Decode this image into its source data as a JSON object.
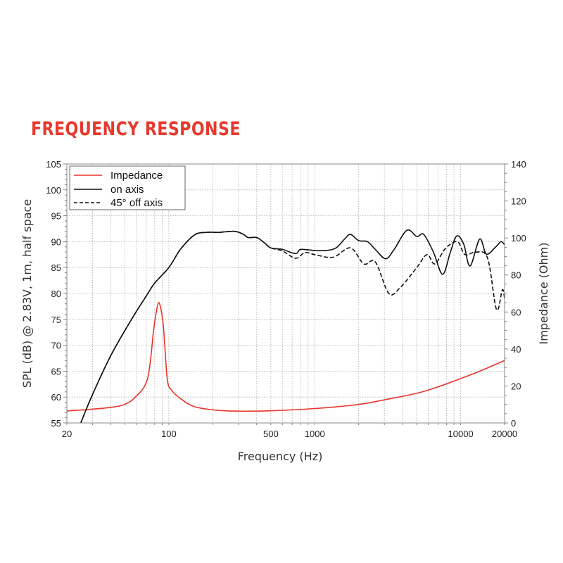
{
  "title": "FREQUENCY RESPONSE",
  "chart_data": {
    "type": "line",
    "xlabel": "Frequency (Hz)",
    "ylabel": "SPL (dB) @ 2.83V, 1m, half space",
    "y2label": "Impedance (Ohm)",
    "xscale": "log",
    "xlim": [
      20,
      20000
    ],
    "ylim": [
      55,
      105
    ],
    "y2lim": [
      0,
      140
    ],
    "grid": true,
    "legend_position": "top-left",
    "x_tick_labels": [
      "20",
      "100",
      "500",
      "1000",
      "10000",
      "20000"
    ],
    "x_ticks": [
      20,
      100,
      500,
      1000,
      10000,
      20000
    ],
    "y_ticks": [
      55,
      60,
      65,
      70,
      75,
      80,
      85,
      90,
      95,
      100,
      105
    ],
    "y2_ticks": [
      0,
      20,
      40,
      60,
      80,
      100,
      120,
      140
    ],
    "series": [
      {
        "name": "Impedance",
        "axis": "right",
        "color": "#e8352a",
        "style": "solid",
        "x": [
          20,
          27.3,
          39.8,
          49.6,
          59,
          71.5,
          78.6,
          82,
          85,
          88,
          91.8,
          97.5,
          103.8,
          121,
          151,
          218,
          300,
          500,
          1000,
          2000,
          3000,
          5000,
          7000,
          10000,
          14000,
          20000
        ],
        "y": [
          6.5,
          7.2,
          8.4,
          10,
          14,
          24,
          50,
          60,
          65,
          62,
          52,
          24,
          18,
          13,
          8.7,
          6.8,
          6.4,
          6.6,
          7.8,
          10,
          12.5,
          16,
          19.5,
          24,
          28.5,
          33.8
        ]
      },
      {
        "name": "on axis",
        "axis": "left",
        "color": "#111111",
        "style": "solid",
        "x": [
          24.9,
          30,
          40,
          55.5,
          70,
          80,
          100,
          120,
          150,
          180,
          220,
          280,
          320,
          350,
          400,
          450,
          500,
          600,
          740,
          800,
          1000,
          1200,
          1400,
          1600,
          1758,
          2000,
          2300,
          2600,
          3062,
          3500,
          4280,
          5000,
          5580,
          6500,
          7530,
          8500,
          9400,
          10500,
          11600,
          13500,
          15000,
          17400,
          18900,
          20000
        ],
        "y": [
          55,
          60.5,
          68,
          75,
          79.5,
          82,
          85,
          88.5,
          91.3,
          91.8,
          91.8,
          92,
          91.5,
          90.8,
          90.8,
          89.8,
          88.8,
          88.5,
          87.7,
          88.5,
          88.3,
          88.3,
          88.8,
          90.5,
          91.4,
          90.2,
          90,
          88.5,
          86.7,
          88.5,
          92.2,
          91,
          91.4,
          88,
          83.7,
          88,
          91.1,
          89.5,
          85.3,
          90.5,
          87.6,
          89,
          90,
          89.4
        ]
      },
      {
        "name": "45° off axis",
        "axis": "left",
        "color": "#111111",
        "style": "dashed",
        "x": [
          24.9,
          30,
          40,
          55.5,
          70,
          80,
          100,
          120,
          150,
          180,
          220,
          280,
          320,
          350,
          400,
          450,
          500,
          600,
          740,
          857,
          1000,
          1335,
          1758,
          2170,
          2600,
          3220,
          3870,
          5000,
          5880,
          6650,
          7870,
          9500,
          10700,
          12700,
          15300,
          17600,
          19300,
          20000
        ],
        "y": [
          55,
          60.5,
          68,
          75,
          79.5,
          82,
          85,
          88.5,
          91.3,
          91.8,
          91.8,
          92,
          91.5,
          90.8,
          90.8,
          89.8,
          88.8,
          88.2,
          86.8,
          87.9,
          87.5,
          87,
          88.8,
          85.7,
          86.1,
          80,
          81.2,
          85,
          87.5,
          85.7,
          88.7,
          90,
          87.5,
          88,
          86.8,
          76.9,
          80.7,
          79
        ]
      }
    ]
  }
}
